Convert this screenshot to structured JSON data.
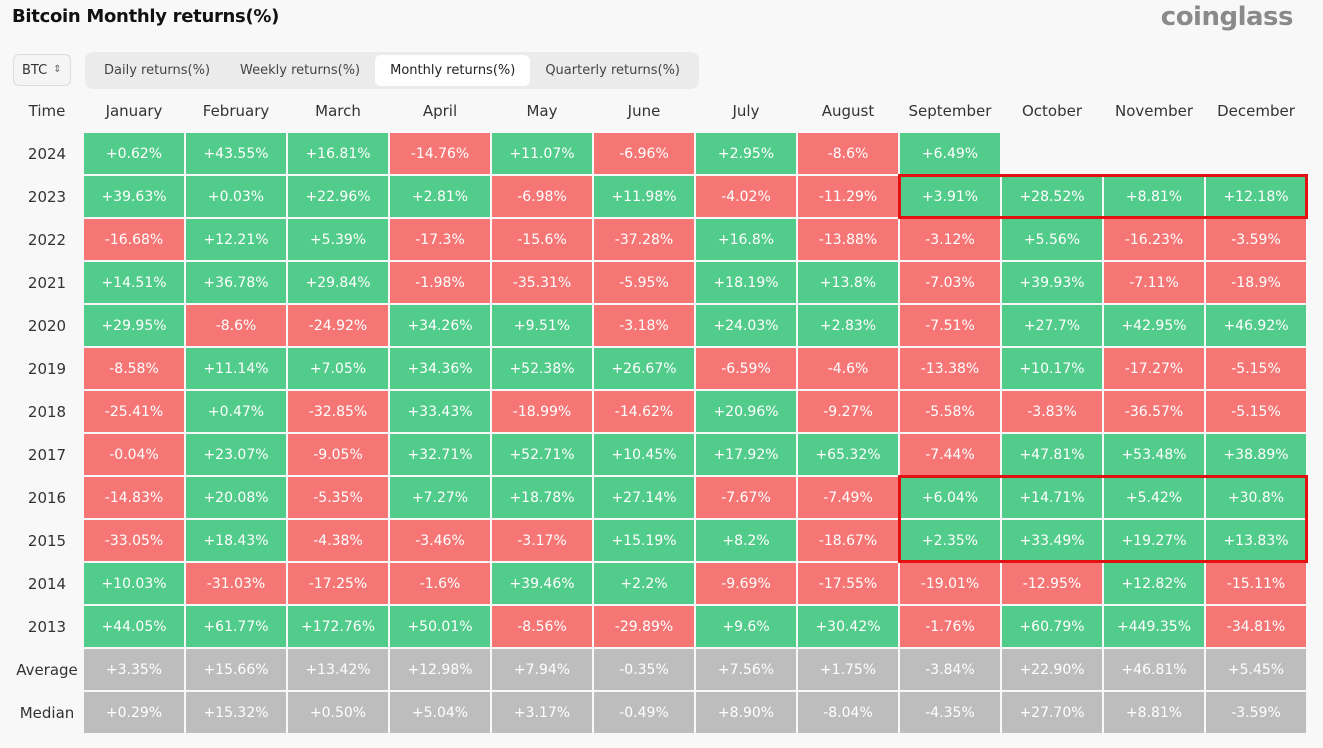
{
  "header": {
    "title": "Bitcoin Monthly returns(%)",
    "brand": "coinglass"
  },
  "asset_select": {
    "value": "BTC"
  },
  "tabs": [
    {
      "label": "Daily returns(%)",
      "active": false
    },
    {
      "label": "Weekly returns(%)",
      "active": false
    },
    {
      "label": "Monthly returns(%)",
      "active": true
    },
    {
      "label": "Quarterly returns(%)",
      "active": false
    }
  ],
  "table": {
    "time_header": "Time",
    "columns": [
      "January",
      "February",
      "March",
      "April",
      "May",
      "June",
      "July",
      "August",
      "September",
      "October",
      "November",
      "December"
    ],
    "rows": [
      {
        "label": "2024",
        "values": [
          "+0.62%",
          "+43.55%",
          "+16.81%",
          "-14.76%",
          "+11.07%",
          "-6.96%",
          "+2.95%",
          "-8.6%",
          "+6.49%",
          "",
          "",
          ""
        ]
      },
      {
        "label": "2023",
        "values": [
          "+39.63%",
          "+0.03%",
          "+22.96%",
          "+2.81%",
          "-6.98%",
          "+11.98%",
          "-4.02%",
          "-11.29%",
          "+3.91%",
          "+28.52%",
          "+8.81%",
          "+12.18%"
        ]
      },
      {
        "label": "2022",
        "values": [
          "-16.68%",
          "+12.21%",
          "+5.39%",
          "-17.3%",
          "-15.6%",
          "-37.28%",
          "+16.8%",
          "-13.88%",
          "-3.12%",
          "+5.56%",
          "-16.23%",
          "-3.59%"
        ]
      },
      {
        "label": "2021",
        "values": [
          "+14.51%",
          "+36.78%",
          "+29.84%",
          "-1.98%",
          "-35.31%",
          "-5.95%",
          "+18.19%",
          "+13.8%",
          "-7.03%",
          "+39.93%",
          "-7.11%",
          "-18.9%"
        ]
      },
      {
        "label": "2020",
        "values": [
          "+29.95%",
          "-8.6%",
          "-24.92%",
          "+34.26%",
          "+9.51%",
          "-3.18%",
          "+24.03%",
          "+2.83%",
          "-7.51%",
          "+27.7%",
          "+42.95%",
          "+46.92%"
        ]
      },
      {
        "label": "2019",
        "values": [
          "-8.58%",
          "+11.14%",
          "+7.05%",
          "+34.36%",
          "+52.38%",
          "+26.67%",
          "-6.59%",
          "-4.6%",
          "-13.38%",
          "+10.17%",
          "-17.27%",
          "-5.15%"
        ]
      },
      {
        "label": "2018",
        "values": [
          "-25.41%",
          "+0.47%",
          "-32.85%",
          "+33.43%",
          "-18.99%",
          "-14.62%",
          "+20.96%",
          "-9.27%",
          "-5.58%",
          "-3.83%",
          "-36.57%",
          "-5.15%"
        ]
      },
      {
        "label": "2017",
        "values": [
          "-0.04%",
          "+23.07%",
          "-9.05%",
          "+32.71%",
          "+52.71%",
          "+10.45%",
          "+17.92%",
          "+65.32%",
          "-7.44%",
          "+47.81%",
          "+53.48%",
          "+38.89%"
        ]
      },
      {
        "label": "2016",
        "values": [
          "-14.83%",
          "+20.08%",
          "-5.35%",
          "+7.27%",
          "+18.78%",
          "+27.14%",
          "-7.67%",
          "-7.49%",
          "+6.04%",
          "+14.71%",
          "+5.42%",
          "+30.8%"
        ]
      },
      {
        "label": "2015",
        "values": [
          "-33.05%",
          "+18.43%",
          "-4.38%",
          "-3.46%",
          "-3.17%",
          "+15.19%",
          "+8.2%",
          "-18.67%",
          "+2.35%",
          "+33.49%",
          "+19.27%",
          "+13.83%"
        ]
      },
      {
        "label": "2014",
        "values": [
          "+10.03%",
          "-31.03%",
          "-17.25%",
          "-1.6%",
          "+39.46%",
          "+2.2%",
          "-9.69%",
          "-17.55%",
          "-19.01%",
          "-12.95%",
          "+12.82%",
          "-15.11%"
        ]
      },
      {
        "label": "2013",
        "values": [
          "+44.05%",
          "+61.77%",
          "+172.76%",
          "+50.01%",
          "-8.56%",
          "-29.89%",
          "+9.6%",
          "+30.42%",
          "-1.76%",
          "+60.79%",
          "+449.35%",
          "-34.81%"
        ]
      },
      {
        "label": "Average",
        "summary": true,
        "values": [
          "+3.35%",
          "+15.66%",
          "+13.42%",
          "+12.98%",
          "+7.94%",
          "-0.35%",
          "+7.56%",
          "+1.75%",
          "-3.84%",
          "+22.90%",
          "+46.81%",
          "+5.45%"
        ]
      },
      {
        "label": "Median",
        "summary": true,
        "values": [
          "+0.29%",
          "+15.32%",
          "+0.50%",
          "+5.04%",
          "+3.17%",
          "-0.49%",
          "+8.90%",
          "-8.04%",
          "-4.35%",
          "+27.70%",
          "+8.81%",
          "-3.59%"
        ]
      }
    ],
    "highlights": [
      {
        "from_row": 1,
        "to_row": 1,
        "from_col": 8,
        "to_col": 11
      },
      {
        "from_row": 8,
        "to_row": 9,
        "from_col": 8,
        "to_col": 11
      }
    ]
  },
  "colors": {
    "positive": "#52cc8a",
    "negative": "#f67676",
    "summary": "#bdbdbd",
    "highlight": "#e31212"
  }
}
